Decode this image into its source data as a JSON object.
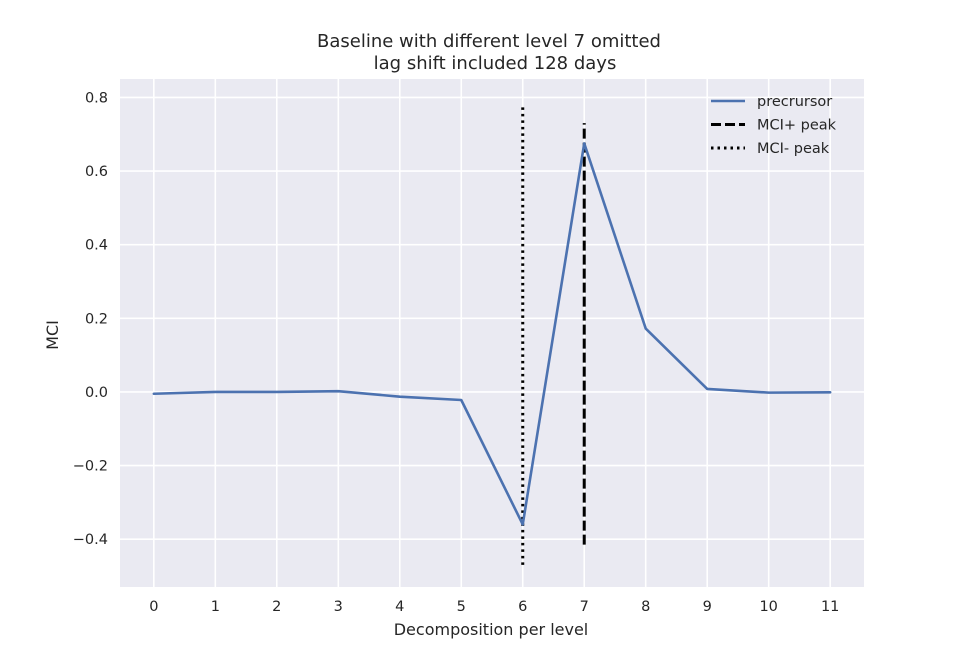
{
  "chart_data": {
    "type": "line",
    "title": "Baseline with different level 7 omitted",
    "subtitle": "lag shift included 128 days",
    "xlabel": "Decomposition per level",
    "ylabel": "MCI",
    "xlim": [
      -0.55,
      11.55
    ],
    "ylim": [
      -0.53,
      0.85
    ],
    "x_ticks": [
      0,
      1,
      2,
      3,
      4,
      5,
      6,
      7,
      8,
      9,
      10,
      11
    ],
    "y_ticks": [
      -0.4,
      -0.2,
      0.0,
      0.2,
      0.4,
      0.6,
      0.8
    ],
    "y_tick_labels": [
      "−0.4",
      "−0.2",
      "0.0",
      "0.2",
      "0.4",
      "0.6",
      "0.8"
    ],
    "grid": true,
    "legend_position": "top-right",
    "series": [
      {
        "name": "precrursor",
        "x": [
          0,
          1,
          2,
          3,
          4,
          5,
          6,
          7,
          8,
          9,
          10,
          11
        ],
        "y": [
          -0.005,
          0.0,
          0.0,
          0.002,
          -0.013,
          -0.022,
          -0.36,
          0.675,
          0.172,
          0.008,
          -0.002,
          -0.001
        ],
        "color": "#4c72b0",
        "style": "solid"
      }
    ],
    "vlines": [
      {
        "name": "MCI+ peak",
        "x": 7,
        "ymin": -0.415,
        "ymax": 0.73,
        "color": "#000000",
        "style": "dashed"
      },
      {
        "name": "MCI- peak",
        "x": 6,
        "ymin": -0.47,
        "ymax": 0.78,
        "color": "#000000",
        "style": "dotted"
      }
    ],
    "colors": {
      "plot_background": "#eaeaf2",
      "grid": "#ffffff",
      "text": "#262626"
    }
  }
}
